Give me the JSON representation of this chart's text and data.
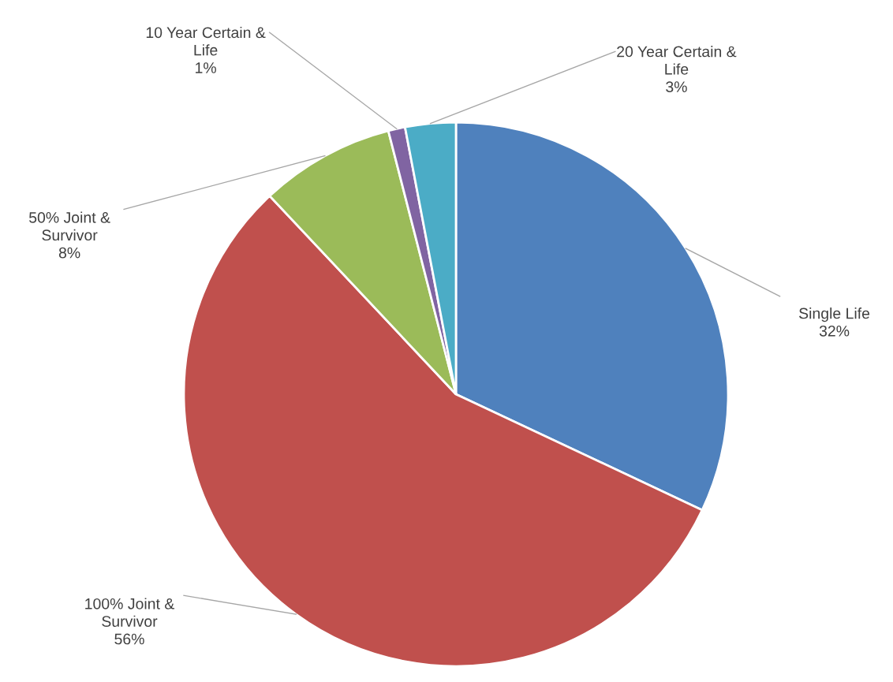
{
  "chart_data": {
    "type": "pie",
    "categories": [
      "Single Life",
      "100% Joint & Survivor",
      "50% Joint & Survivor",
      "10 Year Certain & Life",
      "20 Year Certain & Life"
    ],
    "values": [
      32,
      56,
      8,
      1,
      3
    ],
    "value_labels": [
      "32%",
      "56%",
      "8%",
      "1%",
      "3%"
    ],
    "colors": [
      "#4f81bd",
      "#c0504d",
      "#9bbb59",
      "#8064a2",
      "#4bacc6"
    ],
    "legend": false
  }
}
